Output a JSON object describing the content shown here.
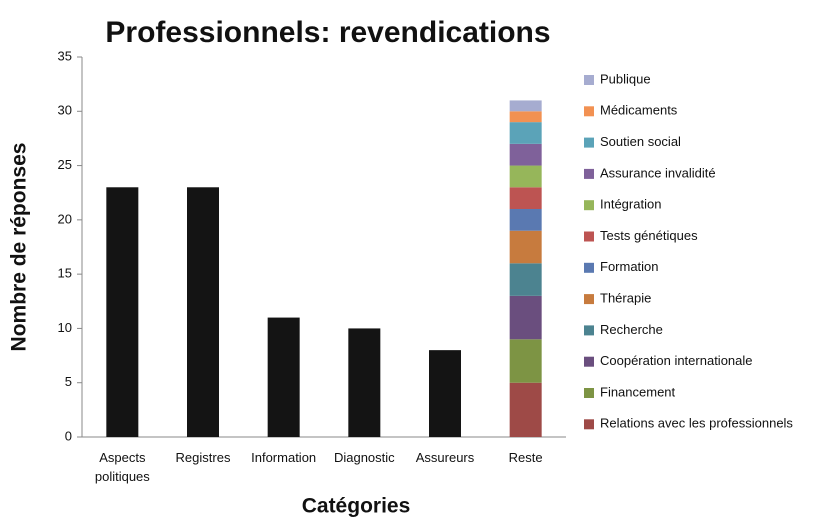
{
  "chart_data": {
    "type": "stacked_bar",
    "title": "Professionnels: revendications",
    "x_label": "Catégories",
    "y_label": "Nombre de réponses",
    "categories": [
      "Aspects politiques",
      "Registres",
      "Information",
      "Diagnostic",
      "Assureurs",
      "Reste"
    ],
    "ylim": [
      0,
      35
    ],
    "yticks": [
      0,
      5,
      10,
      15,
      20,
      25,
      30,
      35
    ],
    "legend": "right",
    "series": [
      {
        "color": "#141414",
        "values": [
          23,
          23,
          11,
          10,
          8,
          null
        ]
      },
      {
        "name": "Relations avec les professionnels",
        "color": "#9e4a47",
        "values": [
          null,
          null,
          null,
          null,
          null,
          5
        ]
      },
      {
        "name": "Financement",
        "color": "#7d9444",
        "values": [
          null,
          null,
          null,
          null,
          null,
          4
        ]
      },
      {
        "name": "Coopération internationale",
        "color": "#6a4e7e",
        "values": [
          null,
          null,
          null,
          null,
          null,
          4
        ]
      },
      {
        "name": "Recherche",
        "color": "#4c8390",
        "values": [
          null,
          null,
          null,
          null,
          null,
          3
        ]
      },
      {
        "name": "Thérapie",
        "color": "#c77b3e",
        "values": [
          null,
          null,
          null,
          null,
          null,
          3
        ]
      },
      {
        "name": "Formation",
        "color": "#5a79b1",
        "values": [
          null,
          null,
          null,
          null,
          null,
          2
        ]
      },
      {
        "name": "Tests génétiques",
        "color": "#bd5452",
        "values": [
          null,
          null,
          null,
          null,
          null,
          2
        ]
      },
      {
        "name": "Intégration",
        "color": "#96b65a",
        "values": [
          null,
          null,
          null,
          null,
          null,
          2
        ]
      },
      {
        "name": "Assurance invalidité",
        "color": "#7f619a",
        "values": [
          null,
          null,
          null,
          null,
          null,
          2
        ]
      },
      {
        "name": "Soutien social",
        "color": "#5ba3b8",
        "values": [
          null,
          null,
          null,
          null,
          null,
          2
        ]
      },
      {
        "name": "Médicaments",
        "color": "#f29152",
        "values": [
          null,
          null,
          null,
          null,
          null,
          1
        ]
      },
      {
        "name": "Publique",
        "color": "#a6acd0",
        "values": [
          null,
          null,
          null,
          null,
          null,
          1
        ]
      }
    ]
  }
}
